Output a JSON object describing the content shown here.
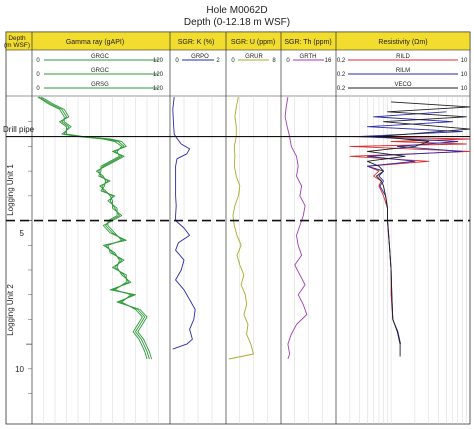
{
  "title": "Hole M0062D",
  "subtitle": "Depth (0-12.18 m WSF)",
  "colors": {
    "header_yellow": "#f2dc2e",
    "green": "#2e9a3a",
    "blue": "#2a2aa8",
    "purple": "#a23ab4",
    "olive": "#a6ad2a",
    "red": "#d83030",
    "black": "#222222",
    "grid": "#d6d6d6"
  },
  "depth_column": {
    "label_line1": "Depth",
    "label_line2": "(m WSF)"
  },
  "tracks": [
    {
      "title": "Gamma ray (gAPI)",
      "curves": [
        {
          "name": "GRGC",
          "min": "0",
          "max": "120",
          "color": "#2e9a3a"
        },
        {
          "name": "GRGC",
          "min": "0",
          "max": "120",
          "color": "#2e9a3a"
        },
        {
          "name": "GRSG",
          "min": "0",
          "max": "120",
          "color": "#2e9a3a"
        }
      ]
    },
    {
      "title": "SGR: K (%)",
      "curves": [
        {
          "name": "GRPO",
          "min": "0",
          "max": "2",
          "color": "#2a2aa8"
        }
      ]
    },
    {
      "title": "SGR: U (ppm)",
      "curves": [
        {
          "name": "GRUR",
          "min": "0",
          "max": "8",
          "color": "#a6ad2a"
        }
      ]
    },
    {
      "title": "SGR: Th (ppm)",
      "curves": [
        {
          "name": "GRTH",
          "min": "0",
          "max": "16",
          "color": "#a23ab4"
        }
      ]
    },
    {
      "title": "Resistivity (Ωm)",
      "curves": [
        {
          "name": "RILD",
          "min": "0.2",
          "max": "10",
          "color": "#d83030"
        },
        {
          "name": "RILM",
          "min": "0.2",
          "max": "10",
          "color": "#2a2aa8"
        },
        {
          "name": "VECO",
          "min": "0.2",
          "max": "10",
          "color": "#222222"
        }
      ]
    }
  ],
  "annotations": {
    "drill_pipe": "Drill pipe",
    "unit1": "Logging Unit 1",
    "unit2": "Logging Unit 2"
  },
  "depth_ticks": [
    "5",
    "10"
  ],
  "chart_data": {
    "type": "line",
    "title": "Hole M0062D",
    "subtitle": "Depth (0-12.18 m WSF)",
    "y_axis": {
      "label": "Depth (m WSF)",
      "range": [
        0,
        12.18
      ],
      "ticks": [
        5,
        10
      ],
      "inverted": true
    },
    "markers": [
      {
        "label": "Drill pipe",
        "depth": 1.6,
        "style": "solid"
      },
      {
        "label": "",
        "depth": 5.0,
        "style": "dashed"
      }
    ],
    "zones": [
      {
        "label": "Logging Unit 1",
        "from": 1.6,
        "to": 5.0
      },
      {
        "label": "Logging Unit 2",
        "from": 5.0,
        "to": 12.18
      }
    ],
    "grid": true,
    "series": [
      {
        "name": "GRGC",
        "track": 0,
        "color": "#2e9a3a",
        "xlim": [
          0,
          120
        ],
        "depth": [
          0.0,
          0.3,
          0.5,
          0.8,
          1.0,
          1.2,
          1.5,
          1.6,
          1.7,
          1.8,
          2.0,
          2.2,
          2.4,
          2.6,
          2.8,
          3.0,
          3.2,
          3.4,
          3.6,
          3.8,
          4.0,
          4.2,
          4.5,
          4.8,
          5.0,
          5.2,
          5.5,
          5.8,
          6.0,
          6.3,
          6.6,
          6.9,
          7.2,
          7.5,
          7.8,
          8.0,
          8.3,
          8.6,
          8.9,
          9.2,
          9.5,
          9.8,
          10.0,
          10.3,
          10.6
        ],
        "values": [
          6,
          17,
          26,
          30,
          26,
          32,
          28,
          42,
          65,
          75,
          80,
          72,
          78,
          70,
          62,
          58,
          60,
          66,
          61,
          62,
          70,
          68,
          72,
          76,
          68,
          64,
          70,
          80,
          64,
          70,
          78,
          72,
          80,
          84,
          70,
          88,
          76,
          92,
          98,
          94,
          90,
          95,
          97,
          100,
          102
        ]
      },
      {
        "name": "GRGC",
        "track": 0,
        "color": "#2e9a3a",
        "xlim": [
          0,
          120
        ],
        "depth": [
          0.0,
          0.3,
          0.5,
          0.8,
          1.0,
          1.2,
          1.5,
          1.6,
          1.7,
          1.8,
          2.0,
          2.2,
          2.4,
          2.6,
          2.8,
          3.0,
          3.2,
          3.4,
          3.6,
          3.8,
          4.0,
          4.2,
          4.5,
          4.8,
          5.0,
          5.2,
          5.5,
          5.8,
          6.0,
          6.3,
          6.6,
          6.9,
          7.2,
          7.5,
          7.8,
          8.0,
          8.3,
          8.6,
          8.9,
          9.2,
          9.5,
          9.8,
          10.0,
          10.3,
          10.6
        ],
        "values": [
          8,
          19,
          28,
          32,
          24,
          30,
          30,
          44,
          68,
          78,
          82,
          70,
          80,
          72,
          64,
          56,
          62,
          64,
          63,
          60,
          72,
          66,
          74,
          74,
          66,
          66,
          72,
          78,
          66,
          68,
          80,
          70,
          82,
          82,
          72,
          86,
          78,
          90,
          96,
          92,
          88,
          93,
          95,
          98,
          100
        ]
      },
      {
        "name": "GRSG",
        "track": 0,
        "color": "#2e9a3a",
        "xlim": [
          0,
          120
        ],
        "depth": [
          0.0,
          0.3,
          0.5,
          0.8,
          1.0,
          1.2,
          1.5,
          1.6,
          1.7,
          1.8,
          2.0,
          2.2,
          2.4,
          2.6,
          2.8,
          3.0,
          3.2,
          3.4,
          3.6,
          3.8,
          4.0,
          4.2,
          4.5,
          4.8,
          5.0,
          5.2,
          5.5,
          5.8,
          6.0,
          6.3,
          6.6,
          6.9,
          7.2,
          7.5,
          7.8,
          8.0,
          8.3,
          8.6,
          8.9,
          9.2,
          9.5,
          9.8,
          10.0,
          10.3,
          10.6
        ],
        "values": [
          5,
          15,
          24,
          28,
          28,
          34,
          26,
          40,
          62,
          72,
          78,
          74,
          76,
          68,
          60,
          60,
          58,
          68,
          59,
          64,
          68,
          70,
          70,
          78,
          70,
          62,
          68,
          82,
          62,
          72,
          76,
          74,
          78,
          86,
          68,
          90,
          74,
          94,
          100,
          96,
          92,
          97,
          99,
          102,
          104
        ]
      },
      {
        "name": "GRPO",
        "track": 1,
        "color": "#2a2aa8",
        "xlim": [
          0,
          2
        ],
        "depth": [
          0.0,
          0.5,
          1.0,
          1.5,
          1.6,
          1.9,
          2.1,
          2.3,
          2.5,
          2.8,
          3.2,
          3.6,
          4.0,
          4.4,
          4.8,
          5.0,
          5.3,
          5.6,
          5.9,
          6.2,
          6.6,
          7.0,
          7.4,
          7.8,
          8.2,
          8.6,
          9.0,
          9.4,
          9.8,
          10.0,
          10.2
        ],
        "values": [
          0.15,
          0.1,
          0.12,
          0.15,
          0.2,
          0.4,
          0.7,
          0.6,
          0.25,
          0.2,
          0.2,
          0.2,
          0.2,
          0.22,
          0.2,
          0.2,
          0.5,
          0.7,
          0.3,
          0.2,
          0.5,
          0.4,
          0.2,
          0.5,
          0.7,
          0.9,
          0.85,
          0.7,
          0.8,
          0.6,
          0.1
        ]
      },
      {
        "name": "GRUR",
        "track": 2,
        "color": "#a6ad2a",
        "xlim": [
          0,
          8
        ],
        "depth": [
          0.0,
          0.4,
          0.8,
          1.2,
          1.6,
          2.0,
          2.4,
          2.8,
          3.2,
          3.6,
          4.0,
          4.4,
          4.8,
          5.2,
          5.6,
          6.0,
          6.4,
          6.8,
          7.2,
          7.6,
          8.0,
          8.4,
          8.8,
          9.2,
          9.6,
          10.0,
          10.4,
          10.6
        ],
        "values": [
          1.8,
          1.5,
          1.3,
          1.5,
          1.5,
          1.2,
          1.3,
          1.2,
          1.5,
          2.0,
          1.8,
          1.3,
          1.0,
          1.2,
          1.6,
          2.2,
          1.6,
          2.0,
          2.6,
          2.2,
          2.8,
          3.0,
          2.6,
          3.2,
          3.0,
          3.6,
          4.0,
          0.4
        ]
      },
      {
        "name": "GRTH",
        "track": 3,
        "color": "#a23ab4",
        "xlim": [
          0,
          16
        ],
        "depth": [
          0.0,
          0.4,
          0.8,
          1.2,
          1.6,
          2.0,
          2.4,
          2.8,
          3.2,
          3.6,
          4.0,
          4.4,
          4.8,
          5.2,
          5.6,
          6.0,
          6.4,
          6.8,
          7.2,
          7.6,
          8.0,
          8.4,
          8.8,
          9.2,
          9.6,
          10.0,
          10.4,
          10.6
        ],
        "values": [
          2.0,
          1.5,
          1.2,
          1.8,
          2.5,
          3.0,
          4.5,
          5.0,
          4.5,
          6.0,
          5.5,
          7.0,
          6.5,
          5.5,
          4.5,
          5.0,
          6.0,
          4.0,
          5.5,
          7.0,
          5.0,
          6.5,
          7.5,
          4.5,
          3.0,
          2.0,
          2.5,
          2.0
        ]
      },
      {
        "name": "RILD",
        "track": 4,
        "color": "#d83030",
        "xlim": [
          0.2,
          10
        ],
        "depth": [
          1.6,
          1.7,
          1.8,
          1.9,
          2.0,
          2.2,
          2.4,
          2.6,
          2.8,
          3.0,
          3.2,
          3.4,
          3.6,
          3.8,
          4.0,
          4.5,
          5.0,
          5.5,
          6.0,
          7.0,
          8.0,
          9.0,
          9.5,
          10.0
        ],
        "values": [
          0.3,
          10,
          1.0,
          9.0,
          0.3,
          10,
          0.3,
          3.0,
          0.5,
          0.7,
          0.6,
          0.75,
          0.7,
          0.75,
          0.8,
          0.9,
          0.9,
          0.92,
          0.95,
          1.0,
          1.0,
          1.05,
          1.2,
          1.3
        ]
      },
      {
        "name": "RILM",
        "track": 4,
        "color": "#2a2aa8",
        "xlim": [
          0.2,
          10
        ],
        "depth": [
          0.6,
          0.8,
          1.0,
          1.2,
          1.4,
          1.6,
          1.8,
          2.0,
          2.2,
          2.4,
          2.6,
          2.8,
          3.0,
          3.2,
          3.4,
          3.6,
          4.0,
          4.5,
          5.0,
          5.5,
          6.0,
          7.0,
          8.0,
          9.0,
          9.5,
          10.0
        ],
        "values": [
          5.0,
          0.6,
          6.0,
          0.5,
          8.0,
          0.4,
          7.0,
          1.2,
          8.0,
          0.5,
          2.0,
          0.5,
          0.8,
          0.7,
          0.8,
          0.72,
          0.85,
          0.9,
          0.9,
          0.93,
          0.95,
          1.0,
          1.02,
          1.05,
          1.22,
          1.32
        ]
      },
      {
        "name": "VECO",
        "track": 4,
        "color": "#222222",
        "xlim": [
          0.2,
          10
        ],
        "depth": [
          0.2,
          0.4,
          0.6,
          0.8,
          1.0,
          1.3,
          1.6,
          1.8,
          2.0,
          2.2,
          2.4,
          2.6,
          2.8,
          3.0,
          3.2,
          3.4,
          3.6,
          4.0,
          4.5,
          5.0,
          6.0,
          7.0,
          8.0,
          9.0,
          9.5,
          10.0,
          10.5
        ],
        "values": [
          1.0,
          10,
          0.9,
          9.0,
          0.8,
          10,
          0.7,
          3.0,
          2.0,
          0.5,
          1.5,
          0.5,
          0.7,
          0.8,
          0.65,
          0.75,
          0.8,
          0.85,
          0.9,
          0.9,
          0.95,
          1.0,
          1.02,
          1.05,
          1.2,
          1.3,
          1.3
        ]
      }
    ]
  }
}
